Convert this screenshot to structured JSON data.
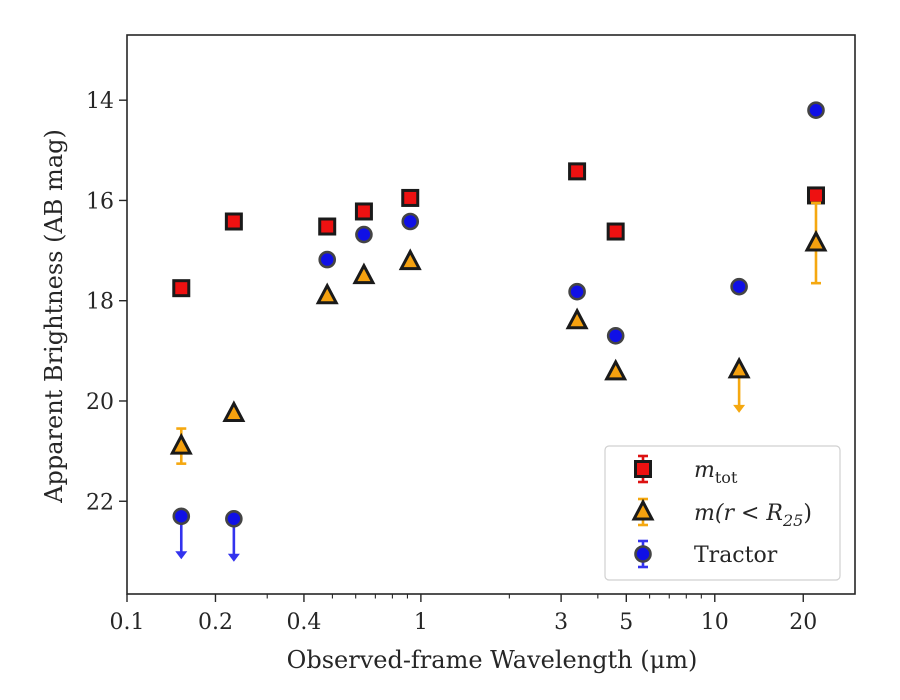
{
  "chart_data": {
    "type": "scatter",
    "xlabel": "Observed-frame Wavelength (μm)",
    "ylabel": "Apparent Brightness (AB mag)",
    "xscale": "log",
    "xlim": [
      0.1,
      30
    ],
    "ylim": [
      23.85,
      12.7
    ],
    "y_inverted": true,
    "grid": false,
    "legend_position": "lower-right",
    "xticks": [
      {
        "value": 0.1,
        "label": "0.1"
      },
      {
        "value": 0.2,
        "label": "0.2"
      },
      {
        "value": 0.4,
        "label": "0.4"
      },
      {
        "value": 1,
        "label": "1"
      },
      {
        "value": 3,
        "label": "3"
      },
      {
        "value": 5,
        "label": "5"
      },
      {
        "value": 10,
        "label": "10"
      },
      {
        "value": 20,
        "label": "20"
      }
    ],
    "yticks": [
      {
        "value": 14,
        "label": "14"
      },
      {
        "value": 16,
        "label": "16"
      },
      {
        "value": 18,
        "label": "18"
      },
      {
        "value": 20,
        "label": "20"
      },
      {
        "value": 22,
        "label": "22"
      }
    ],
    "series": [
      {
        "name": "m_tot",
        "legend_main": "m",
        "legend_sub": "tot",
        "marker": "square",
        "color": "#ee1111",
        "errcolor": "#dd1111",
        "points": [
          {
            "x": 0.153,
            "y": 17.75
          },
          {
            "x": 0.231,
            "y": 16.42
          },
          {
            "x": 0.48,
            "y": 16.52
          },
          {
            "x": 0.64,
            "y": 16.22
          },
          {
            "x": 0.92,
            "y": 15.95
          },
          {
            "x": 3.4,
            "y": 15.42
          },
          {
            "x": 4.6,
            "y": 16.62
          },
          {
            "x": 22.1,
            "y": 15.9
          }
        ]
      },
      {
        "name": "m(r < R_25)",
        "legend_main": "m(r < R",
        "legend_sub": "25",
        "legend_end": ")",
        "marker": "triangle",
        "color": "#f5a10f",
        "errcolor": "#f5a810",
        "points": [
          {
            "x": 0.153,
            "y": 20.9,
            "yerr": [
              0.35,
              0.35
            ]
          },
          {
            "x": 0.231,
            "y": 20.25
          },
          {
            "x": 0.48,
            "y": 17.9
          },
          {
            "x": 0.64,
            "y": 17.5
          },
          {
            "x": 0.92,
            "y": 17.22
          },
          {
            "x": 3.4,
            "y": 18.4
          },
          {
            "x": 4.6,
            "y": 19.42
          },
          {
            "x": 12.1,
            "y": 19.38,
            "upper_limit": true
          },
          {
            "x": 22.1,
            "y": 16.85,
            "yerr": [
              0.8,
              0.8
            ]
          }
        ]
      },
      {
        "name": "Tractor",
        "legend_main": "Tractor",
        "marker": "circle",
        "color": "#1010e6",
        "errcolor": "#3333ee",
        "points": [
          {
            "x": 0.153,
            "y": 22.3,
            "upper_limit": true
          },
          {
            "x": 0.231,
            "y": 22.35,
            "upper_limit": true
          },
          {
            "x": 0.48,
            "y": 17.18
          },
          {
            "x": 0.64,
            "y": 16.68
          },
          {
            "x": 0.92,
            "y": 16.42
          },
          {
            "x": 3.4,
            "y": 17.82
          },
          {
            "x": 4.6,
            "y": 18.7
          },
          {
            "x": 12.1,
            "y": 17.72
          },
          {
            "x": 22.1,
            "y": 14.2
          }
        ]
      }
    ]
  }
}
